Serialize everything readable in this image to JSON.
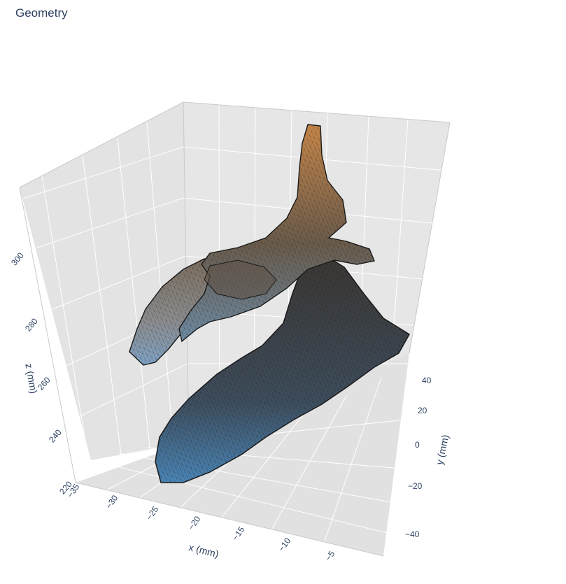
{
  "chart_data": {
    "type": "mesh3d",
    "title": "Geometry",
    "xlabel": "x (mm)",
    "ylabel": "y (mm)",
    "zlabel": "z (mm)",
    "x_ticks": [
      "−35",
      "−30",
      "−25",
      "−20",
      "−15",
      "−10",
      "−5"
    ],
    "y_ticks": [
      "−40",
      "−20",
      "0",
      "20",
      "40"
    ],
    "z_ticks": [
      "220",
      "240",
      "260",
      "280",
      "300"
    ],
    "x_range": [
      -35,
      -2
    ],
    "y_range": [
      -45,
      55
    ],
    "z_range": [
      215,
      305
    ],
    "grid": true,
    "colorscale": [
      "#3f7fb2",
      "#3a3a3a",
      "#c88545"
    ],
    "colors": {
      "pane": "#e5e5e5",
      "pane_dark": "#dcdcdc",
      "grid": "#ffffff",
      "text": "#2a3f5f",
      "mesh_line": "#1e1e1e"
    }
  }
}
